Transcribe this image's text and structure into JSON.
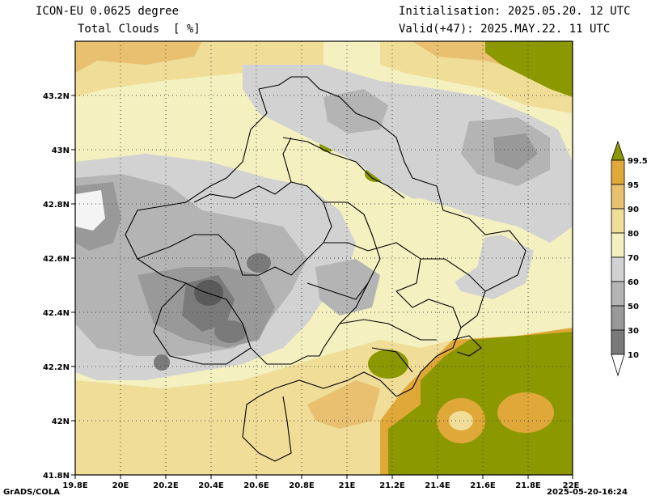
{
  "header": {
    "model": "ICON-EU 0.0625 degree",
    "variable": "Total Clouds  [ %]",
    "init": "Initialisation: 2025.05.20. 12 UTC",
    "valid": "Valid(+47): 2025.MAY.22. 11 UTC"
  },
  "axes": {
    "x_ticks": [
      "19.8E",
      "20E",
      "20.2E",
      "20.4E",
      "20.6E",
      "20.8E",
      "21E",
      "21.2E",
      "21.4E",
      "21.6E",
      "21.8E",
      "22E"
    ],
    "y_ticks": [
      "43.2N",
      "43N",
      "42.8N",
      "42.6N",
      "42.4N",
      "42.2N",
      "42N",
      "41.8N"
    ],
    "x_range": [
      19.8,
      22.0
    ],
    "y_range": [
      41.8,
      43.4
    ]
  },
  "colorbar": {
    "labels": [
      "99.5",
      "95",
      "90",
      "80",
      "70",
      "60",
      "50",
      "30",
      "10"
    ],
    "colors": [
      "#ffffff",
      "#5a5a5a",
      "#7a7a7a",
      "#999999",
      "#b4b4b4",
      "#d2d2d2",
      "#f4f0c0",
      "#f0dd98",
      "#e8c070",
      "#e0a838",
      "#8c9800"
    ]
  },
  "footer": {
    "left": "GrADS/COLA",
    "right": "2025-05-20-16:24"
  }
}
